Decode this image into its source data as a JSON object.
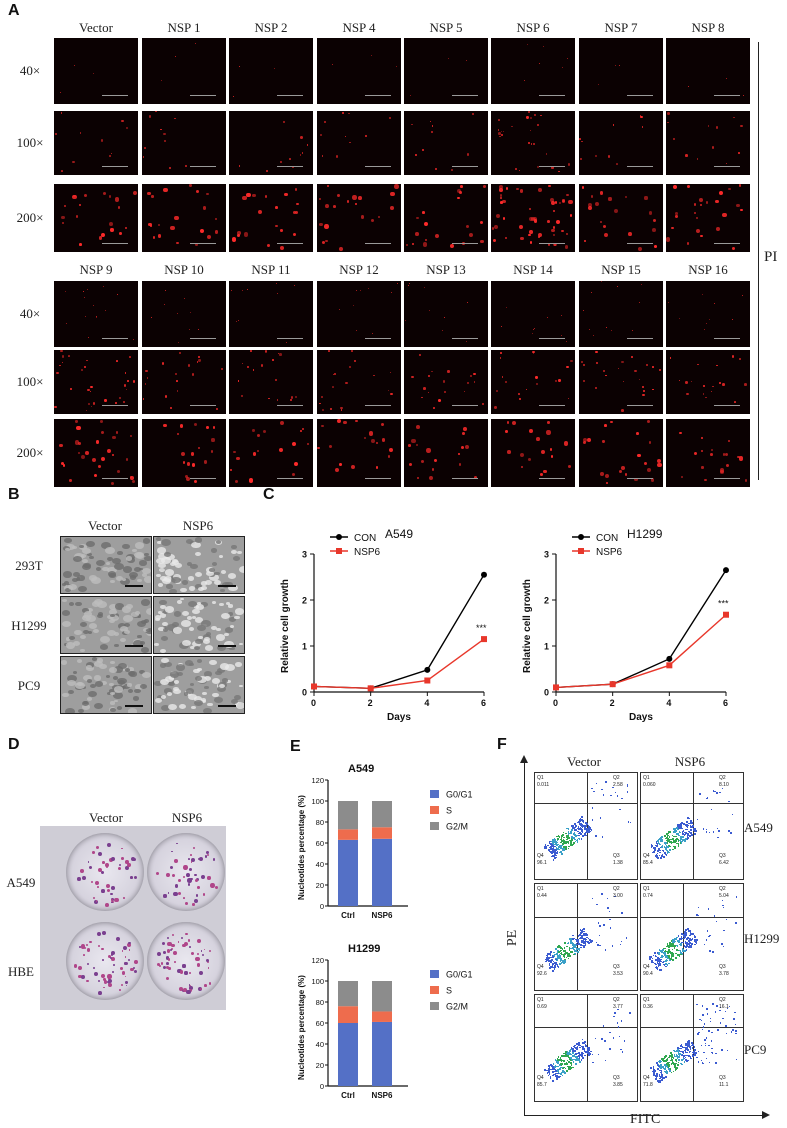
{
  "panels": {
    "A": "A",
    "B": "B",
    "C": "C",
    "D": "D",
    "E": "E",
    "F": "F"
  },
  "panelA": {
    "row1_headers": [
      "Vector",
      "NSP 1",
      "NSP 2",
      "NSP 4",
      "NSP 5",
      "NSP 6",
      "NSP 7",
      "NSP 8"
    ],
    "row2_headers": [
      "NSP 9",
      "NSP 10",
      "NSP 11",
      "NSP 12",
      "NSP 13",
      "NSP 14",
      "NSP 15",
      "NSP 16"
    ],
    "magnifications": [
      "40×",
      "100×",
      "200×"
    ],
    "stain_label": "PI"
  },
  "panelB": {
    "col_headers": [
      "Vector",
      "NSP6"
    ],
    "row_labels": [
      "293T",
      "H1299",
      "PC9"
    ]
  },
  "panelD": {
    "col_headers": [
      "Vector",
      "NSP6"
    ],
    "row_labels": [
      "A549",
      "HBE"
    ]
  },
  "panelF": {
    "col_headers": [
      "Vector",
      "NSP6"
    ],
    "row_labels": [
      "A549",
      "H1299",
      "PC9"
    ],
    "y_axis": "PE",
    "x_axis": "FITC",
    "plots": [
      {
        "q1": "0.011",
        "q2": "2.58",
        "q3": "1.38",
        "q4": "96.1"
      },
      {
        "q1": "0.060",
        "q2": "8.10",
        "q3": "6.42",
        "q4": "85.4"
      },
      {
        "q1": "0.44",
        "q2": "3.00",
        "q3": "3.53",
        "q4": "92.6"
      },
      {
        "q1": "0.74",
        "q2": "5.04",
        "q3": "3.78",
        "q4": "90.4"
      },
      {
        "q1": "0.69",
        "q2": "3.77",
        "q3": "3.85",
        "q4": "85.7"
      },
      {
        "q1": "0.36",
        "q2": "16.1",
        "q3": "11.1",
        "q4": "71.8"
      }
    ]
  },
  "chart_data": [
    {
      "type": "line",
      "title": "A549",
      "xlabel": "Days",
      "ylabel": "Relative cell growth",
      "x": [
        0,
        2,
        4,
        6
      ],
      "ylim": [
        0,
        3
      ],
      "yticks": [
        "0",
        "1",
        "2",
        "3"
      ],
      "xticks": [
        "0",
        "2",
        "4",
        "6"
      ],
      "series": [
        {
          "name": "CON",
          "color": "#000000",
          "values": [
            0.12,
            0.08,
            0.48,
            2.55
          ]
        },
        {
          "name": "NSP6",
          "color": "#e8372b",
          "values": [
            0.12,
            0.08,
            0.25,
            1.15
          ]
        }
      ],
      "annotation": "***"
    },
    {
      "type": "line",
      "title": "H1299",
      "xlabel": "Days",
      "ylabel": "Relative cell growth",
      "x": [
        0,
        2,
        4,
        6
      ],
      "ylim": [
        0,
        3
      ],
      "yticks": [
        "0",
        "1",
        "2",
        "3"
      ],
      "xticks": [
        "0",
        "2",
        "4",
        "6"
      ],
      "series": [
        {
          "name": "CON",
          "color": "#000000",
          "values": [
            0.1,
            0.17,
            0.72,
            2.65
          ]
        },
        {
          "name": "NSP6",
          "color": "#e8372b",
          "values": [
            0.1,
            0.17,
            0.58,
            1.68
          ]
        }
      ],
      "annotation": "***"
    },
    {
      "type": "bar",
      "stacked": true,
      "title": "A549",
      "ylabel": "Nucleotides percentage (%)",
      "categories": [
        "Ctrl",
        "NSP6"
      ],
      "ylim": [
        0,
        120
      ],
      "yticks": [
        "0",
        "20",
        "40",
        "60",
        "80",
        "100",
        "120"
      ],
      "series": [
        {
          "name": "G0/G1",
          "color": "#5470c6",
          "values": [
            63,
            64
          ]
        },
        {
          "name": "S",
          "color": "#ee6c4d",
          "values": [
            10,
            11
          ]
        },
        {
          "name": "G2/M",
          "color": "#8c8c8c",
          "values": [
            27,
            25
          ]
        }
      ]
    },
    {
      "type": "bar",
      "stacked": true,
      "title": "H1299",
      "ylabel": "Nucleotides percentage (%)",
      "categories": [
        "Ctrl",
        "NSP6"
      ],
      "ylim": [
        0,
        120
      ],
      "yticks": [
        "0",
        "20",
        "40",
        "60",
        "80",
        "100",
        "120"
      ],
      "series": [
        {
          "name": "G0/G1",
          "color": "#5470c6",
          "values": [
            60,
            61
          ]
        },
        {
          "name": "S",
          "color": "#ee6c4d",
          "values": [
            16,
            10
          ]
        },
        {
          "name": "G2/M",
          "color": "#8c8c8c",
          "values": [
            24,
            29
          ]
        }
      ]
    }
  ]
}
